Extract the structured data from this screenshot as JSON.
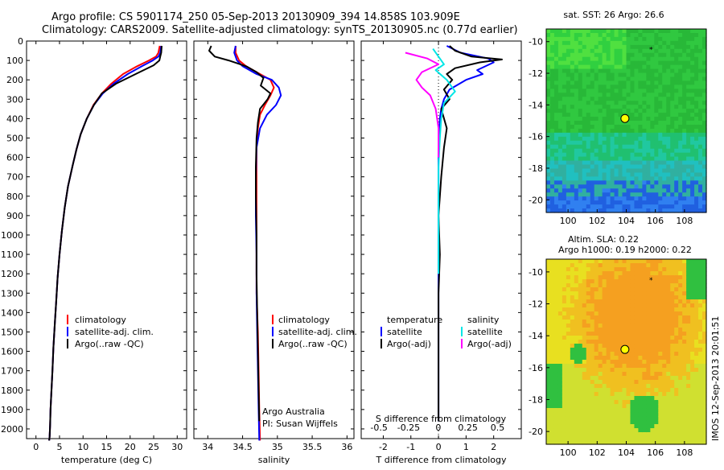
{
  "header": {
    "line1": "Argo profile: CS 5901174_250 05-Sep-2013 20130909_394 14.858S 103.909E",
    "line2": "Climatology: CARS2009. Satellite-adjusted climatology: synTS_20130905.nc (0.77d earlier)"
  },
  "colors": {
    "climatology": "#ff0000",
    "satellite": "#0000ff",
    "argo": "#000000",
    "salinity_satellite": "#00e6e6",
    "salinity_argo": "#ff00ff"
  },
  "chart_data": [
    {
      "type": "line",
      "name": "temperature",
      "xlabel": "temperature (deg C)",
      "ylabel": "",
      "xlim": [
        -2,
        32
      ],
      "ylim": [
        2050,
        0
      ],
      "xticks": [
        "0",
        "5",
        "10",
        "15",
        "20",
        "25",
        "30"
      ],
      "xtick_values": [
        0,
        5,
        10,
        15,
        20,
        25,
        30
      ],
      "yticks": [
        "0",
        "100",
        "200",
        "300",
        "400",
        "500",
        "600",
        "700",
        "800",
        "900",
        "1000",
        "1100",
        "1200",
        "1300",
        "1400",
        "1500",
        "1600",
        "1700",
        "1800",
        "1900",
        "2000"
      ],
      "ytick_values": [
        0,
        100,
        200,
        300,
        400,
        500,
        600,
        700,
        800,
        900,
        1000,
        1100,
        1200,
        1300,
        1400,
        1500,
        1600,
        1700,
        1800,
        1900,
        2000
      ],
      "legend": [
        "climatology",
        "satellite-adj. clim.",
        "Argo(..raw -QC)"
      ],
      "series": [
        {
          "name": "climatology",
          "color": "#ff0000",
          "x": [
            26.3,
            26.0,
            25.5,
            24.0,
            21.5,
            18.5,
            16.0,
            14.0,
            12.2,
            10.8,
            9.5,
            8.6,
            7.8,
            6.8,
            6.1,
            5.5,
            5.0,
            4.6,
            4.3,
            4.0,
            3.7,
            3.5,
            3.3,
            3.1,
            3.0,
            2.9,
            2.8
          ],
          "y": [
            25,
            60,
            80,
            100,
            130,
            170,
            220,
            270,
            330,
            400,
            480,
            560,
            640,
            750,
            860,
            980,
            1100,
            1220,
            1340,
            1460,
            1580,
            1700,
            1800,
            1900,
            1980,
            2040,
            2060
          ]
        },
        {
          "name": "satellite-adj. clim.",
          "color": "#0000ff",
          "x": [
            26.6,
            26.4,
            26.0,
            24.8,
            22.5,
            19.5,
            16.5,
            14.2,
            12.3,
            10.8,
            9.5,
            8.6,
            7.8,
            6.8,
            6.1,
            5.5,
            5.0,
            4.6,
            4.3,
            4.0,
            3.7,
            3.5,
            3.3,
            3.1,
            3.0,
            2.9,
            2.8
          ],
          "y": [
            25,
            60,
            80,
            100,
            130,
            170,
            220,
            270,
            330,
            400,
            480,
            560,
            640,
            750,
            860,
            980,
            1100,
            1220,
            1340,
            1460,
            1580,
            1700,
            1800,
            1900,
            1980,
            2040,
            2060
          ]
        },
        {
          "name": "Argo(..raw -QC)",
          "color": "#000000",
          "x": [
            26.7,
            26.6,
            26.4,
            26.2,
            25.0,
            22.0,
            17.0,
            14.0,
            12.3,
            10.8,
            9.5,
            8.6,
            7.8,
            6.8,
            6.1,
            5.5,
            5.0,
            4.6,
            4.3,
            4.0,
            3.7,
            3.5,
            3.3,
            3.1,
            3.0,
            2.9,
            2.8
          ],
          "y": [
            25,
            60,
            80,
            100,
            125,
            160,
            220,
            270,
            330,
            400,
            480,
            560,
            640,
            750,
            860,
            980,
            1100,
            1220,
            1340,
            1460,
            1580,
            1700,
            1800,
            1900,
            1980,
            2040,
            2060
          ]
        }
      ]
    },
    {
      "type": "line",
      "name": "salinity",
      "xlabel": "salinity",
      "xlim": [
        33.8,
        36.1
      ],
      "ylim": [
        2050,
        0
      ],
      "xticks": [
        "34",
        "34.5",
        "35",
        "35.5",
        "36"
      ],
      "xtick_values": [
        34,
        34.5,
        35,
        35.5,
        36
      ],
      "legend": [
        "climatology",
        "satellite-adj. clim.",
        "Argo(..raw -QC)"
      ],
      "annotations": [
        "Argo Australia",
        "PI: Susan Wijffels"
      ],
      "series": [
        {
          "name": "climatology",
          "color": "#ff0000",
          "x": [
            34.4,
            34.4,
            34.45,
            34.55,
            34.75,
            34.9,
            34.95,
            34.9,
            34.82,
            34.75,
            34.72,
            34.7,
            34.7,
            34.7,
            34.7,
            34.7,
            34.72,
            34.73,
            34.74,
            34.75
          ],
          "y": [
            25,
            60,
            100,
            130,
            170,
            200,
            240,
            280,
            330,
            380,
            450,
            550,
            700,
            900,
            1100,
            1300,
            1500,
            1700,
            1900,
            2060
          ]
        },
        {
          "name": "satellite-adj. clim.",
          "color": "#0000ff",
          "x": [
            34.4,
            34.38,
            34.42,
            34.5,
            34.7,
            34.92,
            35.02,
            35.05,
            34.98,
            34.85,
            34.75,
            34.7,
            34.69,
            34.69,
            34.7,
            34.7,
            34.71,
            34.72,
            34.73,
            34.74
          ],
          "y": [
            25,
            60,
            100,
            130,
            170,
            200,
            240,
            280,
            330,
            380,
            450,
            550,
            700,
            900,
            1100,
            1300,
            1500,
            1700,
            1900,
            2060
          ]
        },
        {
          "name": "Argo(..raw -QC)",
          "color": "#000000",
          "x": [
            34.05,
            34.02,
            34.1,
            34.3,
            34.55,
            34.7,
            34.8,
            34.76,
            34.9,
            34.86,
            34.75,
            34.72,
            34.7,
            34.69,
            34.69,
            34.7,
            34.7,
            34.71,
            34.72,
            34.73,
            34.74
          ],
          "y": [
            25,
            50,
            80,
            100,
            130,
            160,
            190,
            230,
            270,
            300,
            350,
            420,
            500,
            650,
            800,
            1000,
            1200,
            1400,
            1600,
            1800,
            1960
          ]
        }
      ]
    },
    {
      "type": "line",
      "name": "difference from climatology",
      "xlabel": "T difference from climatology",
      "xlabel_top": "S difference from climatology",
      "xlim": [
        -2.8,
        3.0
      ],
      "ylim": [
        2050,
        0
      ],
      "xticks": [
        "-2",
        "-1",
        "0",
        "1",
        "2"
      ],
      "xtick_values": [
        -2,
        -1,
        0,
        1,
        2
      ],
      "xticks_top": [
        "-0.5",
        "-0.25",
        "0",
        "0.25",
        "0.5"
      ],
      "xtick_top_values": [
        -0.5,
        -0.25,
        0,
        0.25,
        0.5
      ],
      "legend_left_title": "temperature",
      "legend_left": [
        "satellite",
        "Argo(-adj)"
      ],
      "legend_right_title": "salinity",
      "legend_right": [
        "satellite",
        "Argo(-adj)"
      ],
      "series": [
        {
          "name": "temperature satellite",
          "color": "#0000ff",
          "x": [
            0.3,
            0.8,
            1.8,
            2.0,
            1.4,
            1.6,
            1.0,
            0.4,
            0.2,
            0.1,
            0.05,
            0.02,
            0.0,
            0.0,
            0.0,
            0.0,
            0.0,
            0.0,
            0.0,
            0.0
          ],
          "y": [
            25,
            60,
            90,
            110,
            150,
            170,
            200,
            250,
            300,
            350,
            400,
            500,
            600,
            800,
            1000,
            1200,
            1400,
            1600,
            1800,
            1960
          ]
        },
        {
          "name": "temperature Argo(-adj)",
          "color": "#000000",
          "x": [
            0.4,
            0.6,
            1.2,
            2.3,
            1.5,
            0.6,
            0.3,
            0.5,
            0.2,
            0.4,
            0.1,
            0.3,
            0.2,
            0.1,
            0.0,
            0.05,
            0.0,
            0.0,
            0.0,
            0.0
          ],
          "y": [
            25,
            50,
            80,
            95,
            110,
            140,
            170,
            200,
            250,
            300,
            350,
            450,
            550,
            700,
            900,
            1100,
            1300,
            1500,
            1700,
            1960
          ]
        },
        {
          "name": "salinity satellite",
          "color": "#00e6e6",
          "x": [
            -0.2,
            0.0,
            0.2,
            -0.1,
            0.3,
            0.6,
            0.2,
            0.1,
            0.05,
            0.0,
            0.0,
            0.0,
            0.0
          ],
          "y": [
            40,
            80,
            120,
            150,
            200,
            260,
            320,
            400,
            500,
            650,
            800,
            1000,
            1200
          ]
        },
        {
          "name": "salinity Argo(-adj)",
          "color": "#ff00ff",
          "x": [
            -1.2,
            -0.4,
            0.0,
            -0.6,
            -0.8,
            -0.6,
            -0.3,
            -0.1,
            0.0,
            0.0
          ],
          "y": [
            60,
            90,
            120,
            160,
            200,
            240,
            280,
            350,
            450,
            600
          ]
        }
      ]
    },
    {
      "type": "heatmap",
      "name": "sat. SST map",
      "title": "sat. SST: 26 Argo: 26.6",
      "xlim": [
        98.5,
        109.5
      ],
      "ylim": [
        -20.8,
        -9.2
      ],
      "xticks": [
        "100",
        "102",
        "104",
        "106",
        "108"
      ],
      "xtick_values": [
        100,
        102,
        104,
        106,
        108
      ],
      "yticks": [
        "-10",
        "-12",
        "-14",
        "-16",
        "-18",
        "-20"
      ],
      "ytick_values": [
        -10,
        -12,
        -14,
        -16,
        -18,
        -20
      ],
      "markers": [
        {
          "lon": 103.909,
          "lat": -14.858,
          "type": "circle"
        },
        {
          "lon": 105.7,
          "lat": -10.5,
          "type": "star"
        }
      ]
    },
    {
      "type": "heatmap",
      "name": "altimetry SLA map",
      "title_line1": "Altim. SLA: 0.22",
      "title_line2": "Argo h1000: 0.19 h2000: 0.22",
      "xlim": [
        98.5,
        109.5
      ],
      "ylim": [
        -20.8,
        -9.2
      ],
      "xticks": [
        "100",
        "102",
        "104",
        "106",
        "108"
      ],
      "xtick_values": [
        100,
        102,
        104,
        106,
        108
      ],
      "yticks": [
        "-10",
        "-12",
        "-14",
        "-16",
        "-18",
        "-20"
      ],
      "ytick_values": [
        -10,
        -12,
        -14,
        -16,
        -18,
        -20
      ],
      "markers": [
        {
          "lon": 103.909,
          "lat": -14.858,
          "type": "circle"
        },
        {
          "lon": 105.7,
          "lat": -10.5,
          "type": "star"
        }
      ]
    }
  ],
  "footer_vertical": "IMOS 12-Sep-2013 20:01:51"
}
